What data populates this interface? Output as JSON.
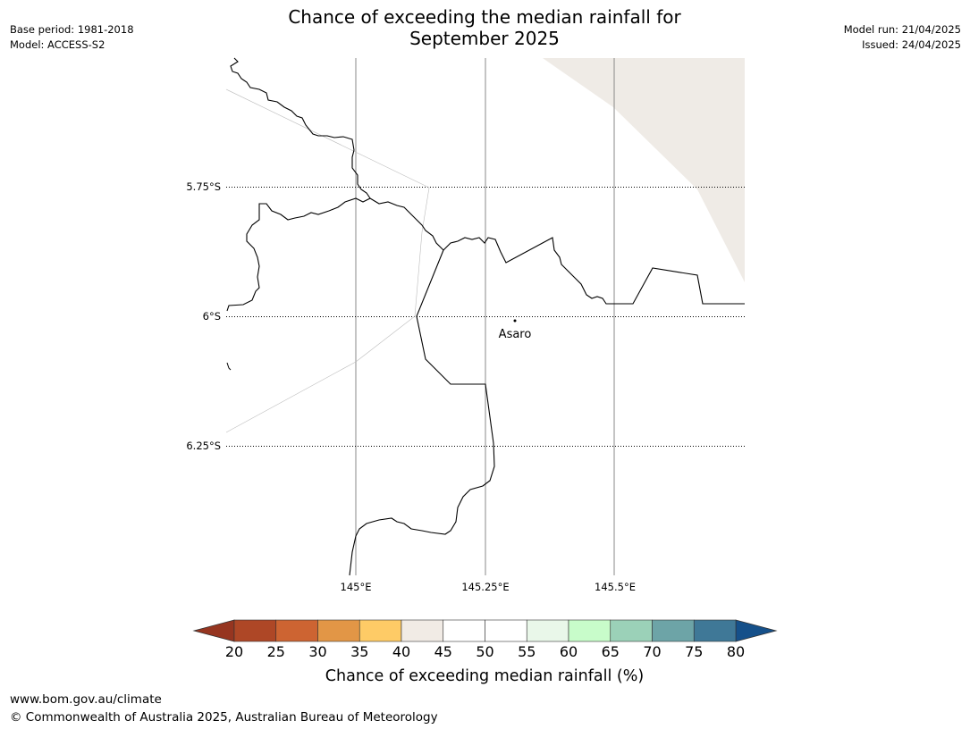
{
  "header": {
    "title_line1": "Chance of exceeding the median rainfall for",
    "title_line2": "September 2025",
    "base_period": "Base period: 1981-2018",
    "model": "Model: ACCESS-S2",
    "model_run": "Model run: 21/04/2025",
    "issued": "Issued: 24/04/2025"
  },
  "map": {
    "lat_labels": [
      "5.75°S",
      "6°S",
      "6.25°S"
    ],
    "lon_labels": [
      "145°E",
      "145.25°E",
      "145.5°E"
    ],
    "place": {
      "name": "Asaro",
      "lon": 145.3,
      "lat": -6.01
    },
    "shaded_region_color": "#efebe6"
  },
  "colorbar": {
    "title": "Chance of exceeding median rainfall (%)",
    "ticks": [
      "20",
      "25",
      "30",
      "35",
      "40",
      "45",
      "50",
      "55",
      "60",
      "65",
      "70",
      "75",
      "80"
    ],
    "below_color": "#963520",
    "above_color": "#15508a",
    "colors": [
      "#ae4726",
      "#cd6432",
      "#e29646",
      "#fecb66",
      "#f1ebe5",
      "#ffffff",
      "#ffffff",
      "#e9f7e9",
      "#c8fcca",
      "#9bd1b8",
      "#6da4a7",
      "#3f7897"
    ]
  },
  "footer": {
    "url": "www.bom.gov.au/climate",
    "copyright": "© Commonwealth of Australia 2025, Australian Bureau of Meteorology"
  }
}
